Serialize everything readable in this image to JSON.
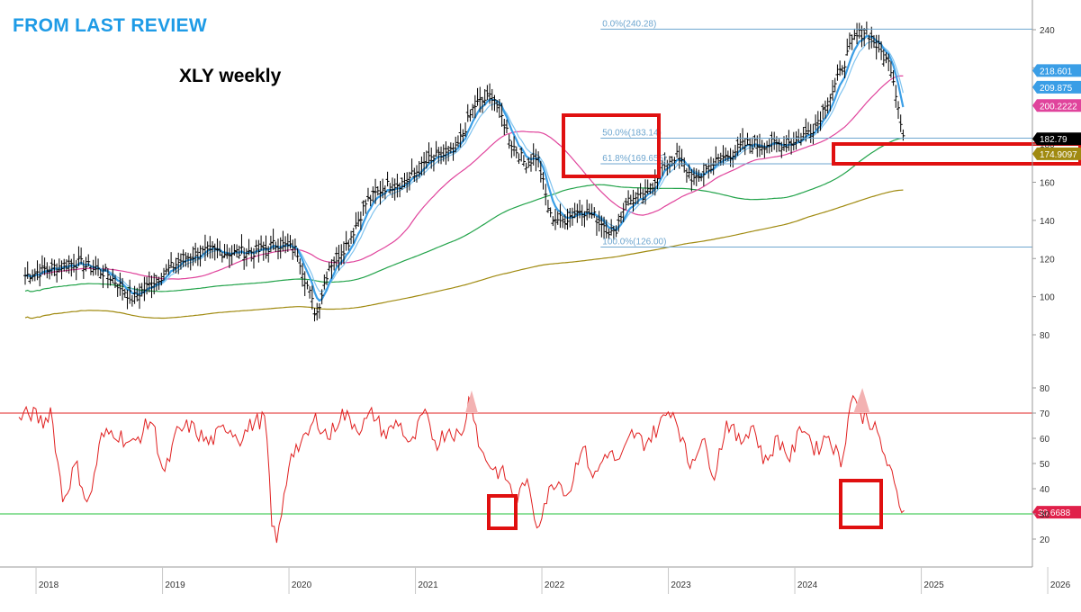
{
  "header": {
    "review_label": "FROM LAST REVIEW",
    "chart_title": "XLY weekly"
  },
  "colors": {
    "review_label": "#1e9be6",
    "price_bars": "#000000",
    "ema_fast": "#3a9ee6",
    "ema_slow": "#7fc3ef",
    "ma_pink": "#e0449c",
    "ma_green": "#22a34a",
    "ma_olive": "#a08a10",
    "fib_lines": "#6ea6cf",
    "rsi_line": "#e02020",
    "rsi_upper": "#e02020",
    "rsi_lower": "#22c03a",
    "highlight_box": "#e01010"
  },
  "chart_data": [
    {
      "type": "line",
      "ylim": [
        72,
        250
      ],
      "yticks": [
        "240",
        "220",
        "200",
        "180",
        "160",
        "140",
        "120",
        "100",
        "80"
      ],
      "x_labels": [
        "2018",
        "2019",
        "2020",
        "2021",
        "2022",
        "2023",
        "2024",
        "2025",
        "2026"
      ],
      "fib_levels": [
        {
          "label": "0.0%(240.28)",
          "value": 240.28
        },
        {
          "label": "50.0%(183.14)",
          "value": 183.14
        },
        {
          "label": "61.8%(169.655)",
          "value": 169.655
        },
        {
          "label": "100.0%(126.00)",
          "value": 126.0
        }
      ],
      "last_value_labels": [
        {
          "text": "218.601",
          "value": 218.601,
          "series": "ema_slow"
        },
        {
          "text": "209.875",
          "value": 209.875,
          "series": "ema_fast"
        },
        {
          "text": "200.2222",
          "value": 200.2222,
          "series": "ma_pink"
        },
        {
          "text": "182.79",
          "value": 182.79,
          "series": "price"
        },
        {
          "text": "174.9097",
          "value": 174.9097,
          "series": "ma_olive"
        }
      ],
      "x": [
        2017.9,
        2018.1,
        2018.3,
        2018.55,
        2018.75,
        2018.95,
        2019.15,
        2019.35,
        2019.55,
        2019.75,
        2019.9,
        2020.05,
        2020.2,
        2020.3,
        2020.45,
        2020.6,
        2020.75,
        2020.9,
        2021.1,
        2021.3,
        2021.45,
        2021.6,
        2021.75,
        2021.85,
        2021.95,
        2022.05,
        2022.15,
        2022.3,
        2022.45,
        2022.55,
        2022.65,
        2022.8,
        2022.95,
        2023.05,
        2023.2,
        2023.3,
        2023.45,
        2023.6,
        2023.75,
        2023.9,
        2024.0,
        2024.15,
        2024.3,
        2024.45,
        2024.55,
        2024.65,
        2024.75,
        2024.85
      ],
      "series": [
        {
          "name": "Close",
          "values": [
            111,
            115,
            118,
            112,
            99,
            110,
            120,
            124,
            123,
            124,
            128,
            124,
            90,
            116,
            128,
            150,
            158,
            160,
            172,
            176,
            200,
            206,
            180,
            170,
            174,
            142,
            140,
            146,
            140,
            132,
            150,
            152,
            170,
            174,
            160,
            168,
            174,
            180,
            180,
            180,
            182,
            190,
            210,
            235,
            240,
            230,
            220,
            183
          ]
        },
        {
          "name": "RSI",
          "ylim": [
            10,
            85
          ],
          "yticks": [
            "80",
            "70",
            "60",
            "50",
            "40",
            "30",
            "20"
          ],
          "upper": 70,
          "lower": 30,
          "last_label": "30.6688",
          "x": [
            2017.85,
            2017.95,
            2018.05,
            2018.1,
            2018.2,
            2018.3,
            2018.4,
            2018.5,
            2018.6,
            2018.75,
            2018.9,
            2019.0,
            2019.1,
            2019.2,
            2019.35,
            2019.5,
            2019.6,
            2019.7,
            2019.8,
            2019.85,
            2019.9,
            2020.0,
            2020.1,
            2020.2,
            2020.3,
            2020.4,
            2020.55,
            2020.65,
            2020.75,
            2020.85,
            2020.95,
            2021.05,
            2021.15,
            2021.25,
            2021.35,
            2021.42,
            2021.5,
            2021.6,
            2021.7,
            2021.75,
            2021.8,
            2021.85,
            2021.9,
            2021.95,
            2022.0,
            2022.1,
            2022.2,
            2022.3,
            2022.4,
            2022.5,
            2022.6,
            2022.7,
            2022.8,
            2022.9,
            2023.0,
            2023.05,
            2023.15,
            2023.25,
            2023.35,
            2023.45,
            2023.55,
            2023.65,
            2023.75,
            2023.85,
            2023.95,
            2024.05,
            2024.15,
            2024.25,
            2024.35,
            2024.45,
            2024.5,
            2024.55,
            2024.65,
            2024.75,
            2024.8,
            2024.85
          ],
          "values": [
            68,
            70,
            66,
            72,
            35,
            50,
            33,
            60,
            63,
            57,
            68,
            45,
            62,
            65,
            58,
            65,
            60,
            66,
            68,
            25,
            20,
            55,
            58,
            68,
            60,
            70,
            64,
            70,
            61,
            67,
            56,
            70,
            58,
            64,
            60,
            78,
            55,
            48,
            45,
            38,
            36,
            44,
            35,
            25,
            34,
            44,
            38,
            58,
            44,
            55,
            50,
            62,
            58,
            64,
            72,
            68,
            49,
            60,
            46,
            67,
            58,
            66,
            50,
            60,
            52,
            66,
            55,
            62,
            50,
            80,
            68,
            70,
            60,
            45,
            36,
            30.67
          ]
        }
      ]
    }
  ]
}
